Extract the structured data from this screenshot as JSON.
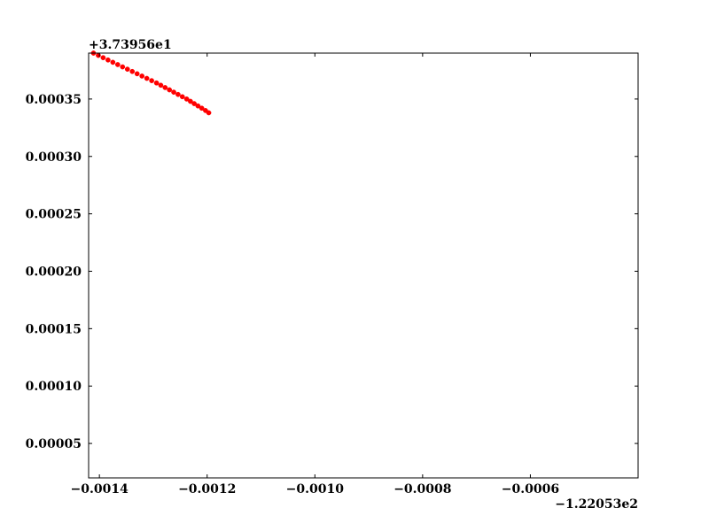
{
  "chart_data": {
    "type": "scatter",
    "title": "",
    "xlabel": "",
    "ylabel": "",
    "x_offset_label": "−1.22053e2",
    "y_offset_label": "+3.73956e1",
    "xlim": [
      -0.00142,
      -0.0004
    ],
    "ylim": [
      2e-05,
      0.00039
    ],
    "x_ticks": [
      {
        "value": -0.0014,
        "label": "−0.0014"
      },
      {
        "value": -0.0012,
        "label": "−0.0012"
      },
      {
        "value": -0.001,
        "label": "−0.0010"
      },
      {
        "value": -0.0008,
        "label": "−0.0008"
      },
      {
        "value": -0.0006,
        "label": "−0.0006"
      }
    ],
    "y_ticks": [
      {
        "value": 5e-05,
        "label": "0.00005"
      },
      {
        "value": 0.0001,
        "label": "0.00010"
      },
      {
        "value": 0.00015,
        "label": "0.00015"
      },
      {
        "value": 0.0002,
        "label": "0.00020"
      },
      {
        "value": 0.00025,
        "label": "0.00025"
      },
      {
        "value": 0.0003,
        "label": "0.00030"
      },
      {
        "value": 0.00035,
        "label": "0.00035"
      }
    ],
    "grid": false,
    "series": [
      {
        "color": "#ff0000",
        "x": [
          -0.001411,
          -0.001402,
          -0.001393,
          -0.001384,
          -0.001375,
          -0.001366,
          -0.001357,
          -0.001348,
          -0.001339,
          -0.00133,
          -0.001321,
          -0.001312,
          -0.001303,
          -0.001294,
          -0.001286,
          -0.001278,
          -0.00127,
          -0.001262,
          -0.001254,
          -0.001246,
          -0.001238,
          -0.001231,
          -0.001224,
          -0.001217,
          -0.00121,
          -0.001203,
          -0.001197
        ],
        "y": [
          0.00039,
          0.000388,
          0.000386,
          0.000384,
          0.000382,
          0.00038,
          0.000378,
          0.000376,
          0.000374,
          0.000372,
          0.00037,
          0.000368,
          0.000366,
          0.000364,
          0.000362,
          0.00036,
          0.000358,
          0.000356,
          0.000354,
          0.000352,
          0.00035,
          0.000348,
          0.000346,
          0.000344,
          0.000342,
          0.00034,
          0.000338
        ]
      }
    ]
  }
}
